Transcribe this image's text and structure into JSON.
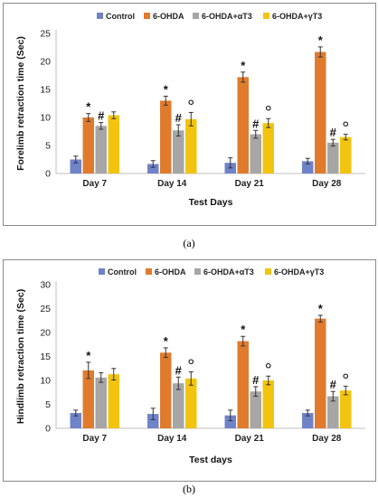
{
  "chart_data": [
    {
      "type": "bar",
      "panel_label": "(a)",
      "ylabel": "Forelimb retraction time (Sec)",
      "xlabel": "Test Days",
      "categories": [
        "Day 7",
        "Day 14",
        "Day 21",
        "Day 28"
      ],
      "ylim": [
        0,
        25
      ],
      "yticks": [
        0,
        5,
        10,
        15,
        20,
        25
      ],
      "grid": false,
      "legend_position": "top",
      "series": [
        {
          "name": "Control",
          "color": "#6f83c9",
          "values": [
            2.5,
            1.7,
            1.9,
            2.2
          ],
          "errors": [
            0.6,
            0.6,
            0.9,
            0.5
          ],
          "markers": [
            "",
            "",
            "",
            ""
          ]
        },
        {
          "name": "6-OHDA",
          "color": "#e07b2e",
          "values": [
            10.0,
            13.0,
            17.2,
            21.7
          ],
          "errors": [
            0.7,
            0.8,
            0.9,
            0.9
          ],
          "markers": [
            "*",
            "*",
            "*",
            "*"
          ]
        },
        {
          "name": "6-OHDA+αT3",
          "color": "#a6a6a6",
          "values": [
            8.5,
            7.7,
            7.0,
            5.5
          ],
          "errors": [
            0.6,
            1.0,
            0.7,
            0.6
          ],
          "markers": [
            "#",
            "#",
            "#",
            "#"
          ]
        },
        {
          "name": "6-OHDA+γT3",
          "color": "#f2c40f",
          "values": [
            10.4,
            9.7,
            9.0,
            6.5
          ],
          "errors": [
            0.6,
            1.2,
            0.8,
            0.5
          ],
          "markers": [
            "",
            "°",
            "°",
            "°"
          ]
        }
      ]
    },
    {
      "type": "bar",
      "panel_label": "(b)",
      "ylabel": "Hindlimb retraction time (Sec)",
      "xlabel": "Test days",
      "categories": [
        "Day 7",
        "Day 14",
        "Day 21",
        "Day 28"
      ],
      "ylim": [
        0,
        30
      ],
      "yticks": [
        0,
        5,
        10,
        15,
        20,
        25,
        30
      ],
      "grid": false,
      "legend_position": "top",
      "series": [
        {
          "name": "Control",
          "color": "#6f83c9",
          "values": [
            3.2,
            3.0,
            2.7,
            3.2
          ],
          "errors": [
            0.6,
            1.2,
            1.1,
            0.6
          ],
          "markers": [
            "",
            "",
            "",
            ""
          ]
        },
        {
          "name": "6-OHDA",
          "color": "#e07b2e",
          "values": [
            12.1,
            15.8,
            18.2,
            22.9
          ],
          "errors": [
            1.7,
            1.0,
            1.0,
            0.7
          ],
          "markers": [
            "*",
            "*",
            "*",
            "*"
          ]
        },
        {
          "name": "6-OHDA+αT3",
          "color": "#a6a6a6",
          "values": [
            10.6,
            9.4,
            7.7,
            6.7
          ],
          "errors": [
            1.0,
            1.3,
            1.0,
            1.0
          ],
          "markers": [
            "",
            "#",
            "#",
            "#"
          ]
        },
        {
          "name": "6-OHDA+γT3",
          "color": "#f2c40f",
          "values": [
            11.3,
            10.4,
            10.0,
            7.9
          ],
          "errors": [
            1.2,
            1.4,
            0.9,
            0.9
          ],
          "markers": [
            "",
            "°",
            "°",
            "°"
          ]
        }
      ]
    }
  ]
}
